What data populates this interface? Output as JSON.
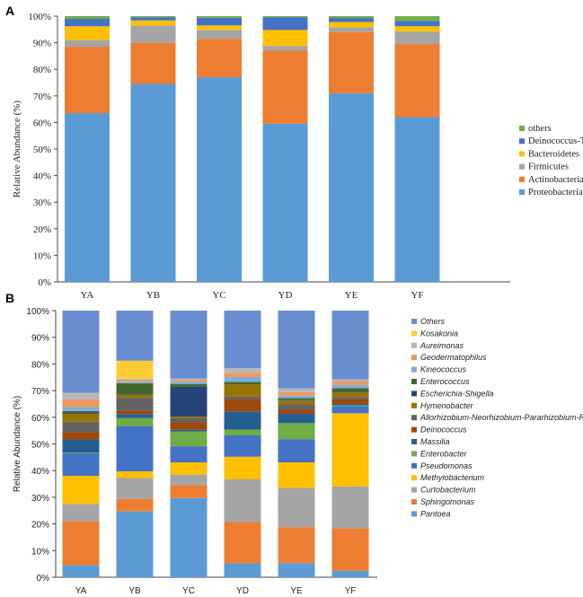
{
  "chart_data": [
    {
      "panel_label": "A",
      "type": "bar",
      "stacked": true,
      "ylabel": "Relative Abundance (%)",
      "ylim": [
        0,
        100
      ],
      "yticks": [
        "0%",
        "10%",
        "20%",
        "30%",
        "40%",
        "50%",
        "60%",
        "70%",
        "80%",
        "90%",
        "100%"
      ],
      "categories": [
        "YA",
        "YB",
        "YC",
        "YD",
        "YE",
        "YF"
      ],
      "legend_position": "right",
      "series": [
        {
          "name": "Proteobacteria",
          "color": "#5B9BD5",
          "values": [
            63.5,
            74.5,
            77,
            59.5,
            71,
            62
          ]
        },
        {
          "name": "Actinobacteria",
          "color": "#ED7D31",
          "values": [
            25,
            15.5,
            14.5,
            27.5,
            23,
            27.5
          ]
        },
        {
          "name": "Firmicutes",
          "color": "#A5A5A5",
          "values": [
            2.5,
            6.5,
            3.3,
            1.8,
            1.8,
            4.7
          ]
        },
        {
          "name": "Bacteroidetes",
          "color": "#FFC000",
          "values": [
            5.2,
            1.9,
            1.7,
            6,
            2,
            2
          ]
        },
        {
          "name": "Deinococcus-Thermus",
          "color": "#4472C4",
          "values": [
            2.8,
            1.2,
            2.9,
            4.8,
            1.5,
            2
          ]
        },
        {
          "name": "others",
          "color": "#70AD47",
          "values": [
            1,
            0.4,
            0.6,
            0.4,
            0.7,
            1.8
          ]
        }
      ]
    },
    {
      "panel_label": "B",
      "type": "bar",
      "stacked": true,
      "ylabel": "Relative Abundance (%)",
      "ylim": [
        0,
        100
      ],
      "yticks": [
        "0%",
        "10%",
        "20%",
        "30%",
        "40%",
        "50%",
        "60%",
        "70%",
        "80%",
        "90%",
        "100%"
      ],
      "categories": [
        "YA",
        "YB",
        "YC",
        "YD",
        "YE",
        "YF"
      ],
      "legend_position": "right",
      "series": [
        {
          "name": "Pantoea",
          "color": "#5B9BD5",
          "values": [
            4.5,
            24.7,
            29.7,
            5.2,
            5.3,
            2.4
          ]
        },
        {
          "name": "Sphingomonas",
          "color": "#ED7D31",
          "values": [
            16.5,
            4.7,
            4.8,
            15.5,
            13.5,
            16
          ]
        },
        {
          "name": "Curtobacterium",
          "color": "#A5A5A5",
          "values": [
            6.5,
            7.8,
            4,
            16,
            14.7,
            15.6
          ]
        },
        {
          "name": "Methylobacterium",
          "color": "#FFC000",
          "values": [
            10.5,
            2.5,
            4.6,
            8.5,
            9.6,
            27.5
          ]
        },
        {
          "name": "Pseudomonas",
          "color": "#4472C4",
          "values": [
            8.5,
            17,
            6,
            8,
            8.7,
            2.7
          ]
        },
        {
          "name": "Enterobacter",
          "color": "#70AD47",
          "values": [
            0.2,
            3,
            5.6,
            2.2,
            6,
            0.3
          ]
        },
        {
          "name": "Massilia",
          "color": "#255E91",
          "values": [
            5,
            1.5,
            0.6,
            6.8,
            3.5,
            0.5
          ]
        },
        {
          "name": "Deinococcus",
          "color": "#9E480E",
          "values": [
            2.8,
            1.3,
            2.8,
            4.6,
            1.5,
            1.8
          ]
        },
        {
          "name": "Allorhizobium-Neorhizobium-Pararhizobium-Rhizobium",
          "color": "#636363",
          "values": [
            3.8,
            4.8,
            1.5,
            1,
            2,
            0.8
          ]
        },
        {
          "name": "Hymenobacter",
          "color": "#997300",
          "values": [
            3,
            1.2,
            0.6,
            4.5,
            1.4,
            1.7
          ]
        },
        {
          "name": "Escherichia-Shigella",
          "color": "#264478",
          "values": [
            0.3,
            0.3,
            11.3,
            0,
            0.2,
            0.2
          ]
        },
        {
          "name": "Enterococcus",
          "color": "#43682B",
          "values": [
            0.7,
            4,
            1,
            1,
            0.8,
            1.4
          ]
        },
        {
          "name": "Kineococcus",
          "color": "#7CAFDD",
          "values": [
            1.5,
            0.5,
            0.8,
            1.8,
            0.9,
            1.2
          ]
        },
        {
          "name": "Geodermatophilus",
          "color": "#F1975A",
          "values": [
            2.7,
            0.6,
            0.6,
            1.6,
            1.3,
            1.3
          ]
        },
        {
          "name": "Aureimonas",
          "color": "#B7B7B7",
          "values": [
            2.7,
            0.6,
            0.6,
            1.7,
            1.4,
            0.8
          ]
        },
        {
          "name": "Kosakonia",
          "color": "#FFCD33",
          "values": [
            0,
            6.7,
            0,
            0,
            0,
            0
          ]
        },
        {
          "name": "Others",
          "color": "#698ED0",
          "values": [
            30.8,
            18.8,
            25.5,
            21.6,
            29.2,
            25.8
          ]
        }
      ]
    }
  ]
}
